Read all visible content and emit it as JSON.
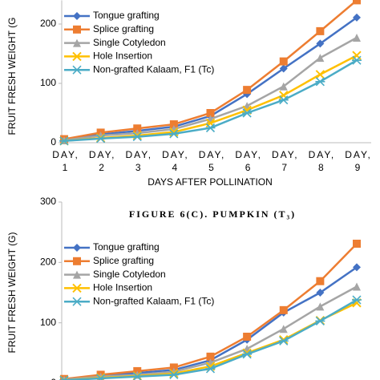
{
  "chart_data": [
    {
      "type": "line",
      "y_label": "FRUIT FRESH WEIGHT (G",
      "x_label": "DAYS AFTER POLLINATION",
      "categories": [
        "DAY, 1",
        "DAY, 2",
        "DAY, 3",
        "DAY, 4",
        "DAY, 5",
        "DAY, 6",
        "DAY, 7",
        "DAY, 8",
        "DAY, 9"
      ],
      "ylim": [
        0,
        240
      ],
      "yticks": [
        0,
        100,
        200
      ],
      "series": [
        {
          "name": "Tongue grafting",
          "color": "#4472c4",
          "marker": "diamond",
          "values": [
            5,
            14,
            20,
            27,
            45,
            82,
            125,
            167,
            211
          ]
        },
        {
          "name": "Splice grafting",
          "color": "#ed7d31",
          "marker": "square",
          "values": [
            6,
            17,
            24,
            31,
            50,
            89,
            137,
            188,
            240
          ]
        },
        {
          "name": "Single Cotyledon",
          "color": "#a5a5a5",
          "marker": "triangle",
          "values": [
            4,
            12,
            16,
            23,
            40,
            62,
            95,
            143,
            177
          ]
        },
        {
          "name": "Hole Insertion",
          "color": "#ffc000",
          "marker": "x",
          "values": [
            3,
            8,
            12,
            18,
            33,
            55,
            80,
            115,
            147
          ]
        },
        {
          "name": "Non-grafted Kalaam, F1 (Tc)",
          "color": "#4bacc6",
          "marker": "asterisk",
          "values": [
            3,
            7,
            10,
            15,
            25,
            50,
            72,
            103,
            139
          ]
        }
      ]
    },
    {
      "type": "line",
      "title": "FIGURE 6(C). PUMPKIN (T₃)",
      "y_label": "FRUIT FRESH WEIGHT (G)",
      "ylim": [
        0,
        300
      ],
      "yticks": [
        0,
        100,
        200,
        300
      ],
      "series": [
        {
          "name": "Tongue grafting",
          "color": "#4472c4",
          "marker": "diamond",
          "values": [
            7,
            12,
            17,
            22,
            38,
            72,
            117,
            150,
            192
          ]
        },
        {
          "name": "Splice grafting",
          "color": "#ed7d31",
          "marker": "square",
          "values": [
            7,
            14,
            20,
            26,
            44,
            77,
            121,
            169,
            231
          ]
        },
        {
          "name": "Single Cotyledon",
          "color": "#a5a5a5",
          "marker": "triangle",
          "values": [
            6,
            11,
            14,
            19,
            34,
            57,
            90,
            127,
            160
          ]
        },
        {
          "name": "Hole Insertion",
          "color": "#ffc000",
          "marker": "x",
          "values": [
            5,
            9,
            12,
            16,
            28,
            50,
            72,
            104,
            133
          ]
        },
        {
          "name": "Non-grafted Kalaam, F1 (Tc)",
          "color": "#4bacc6",
          "marker": "asterisk",
          "values": [
            5,
            8,
            11,
            14,
            24,
            48,
            70,
            103,
            138
          ]
        }
      ]
    }
  ]
}
